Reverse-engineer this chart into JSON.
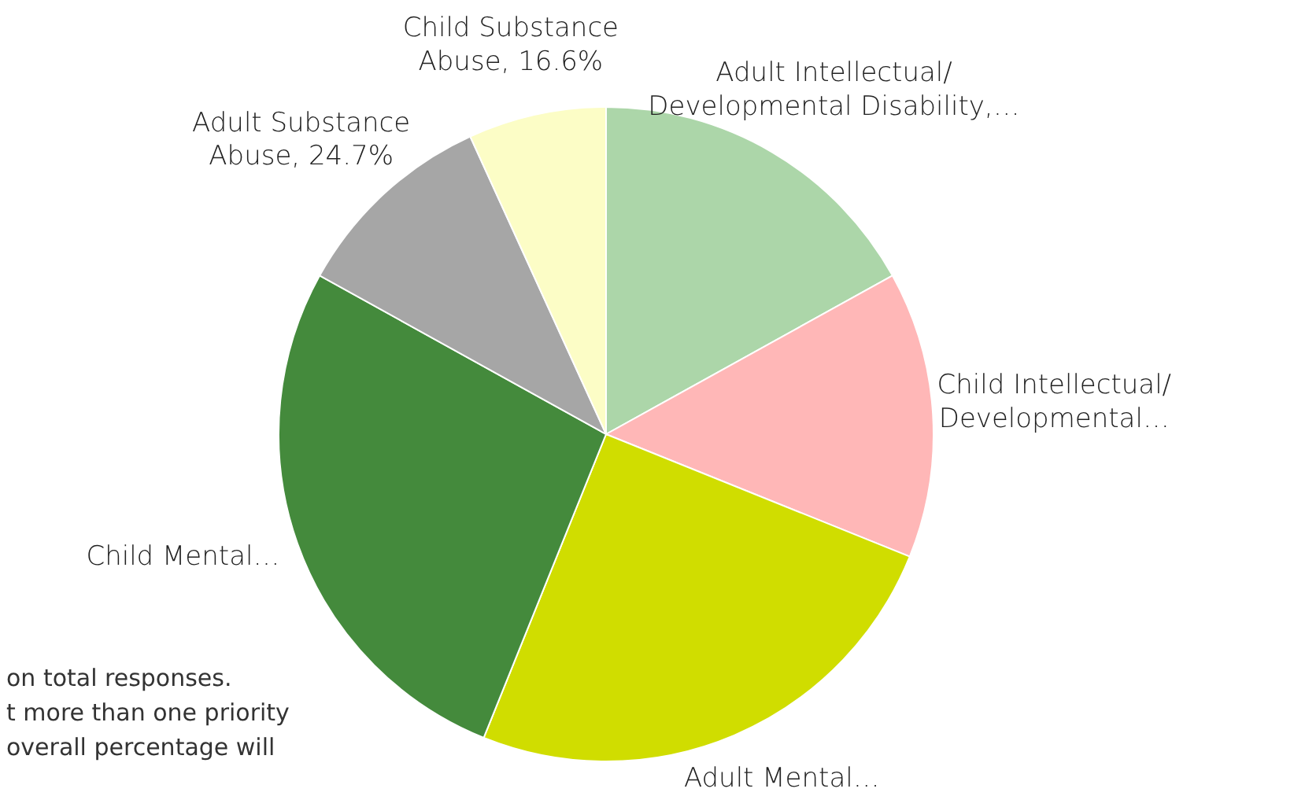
{
  "chart_data": {
    "type": "pie",
    "categories": [
      "Adult Intellectual/ Developmental Disability,…",
      "Child Intellectual/ Developmental…",
      "Adult Mental…",
      "Child Mental…",
      "Adult Substance Abuse",
      "Child Substance Abuse"
    ],
    "values": [
      41.3,
      34.5,
      60.9,
      65.7,
      24.7,
      16.6
    ],
    "value_labels": [
      null,
      null,
      null,
      null,
      "24.7%",
      "16.6%"
    ],
    "colors": [
      "#acd6a9",
      "#ffb7b7",
      "#d0dd00",
      "#448a3c",
      "#a6a6a6",
      "#fcfdc6"
    ],
    "annotations": [
      "on total responses.",
      "t more than one priority",
      "overall percentage will"
    ]
  }
}
